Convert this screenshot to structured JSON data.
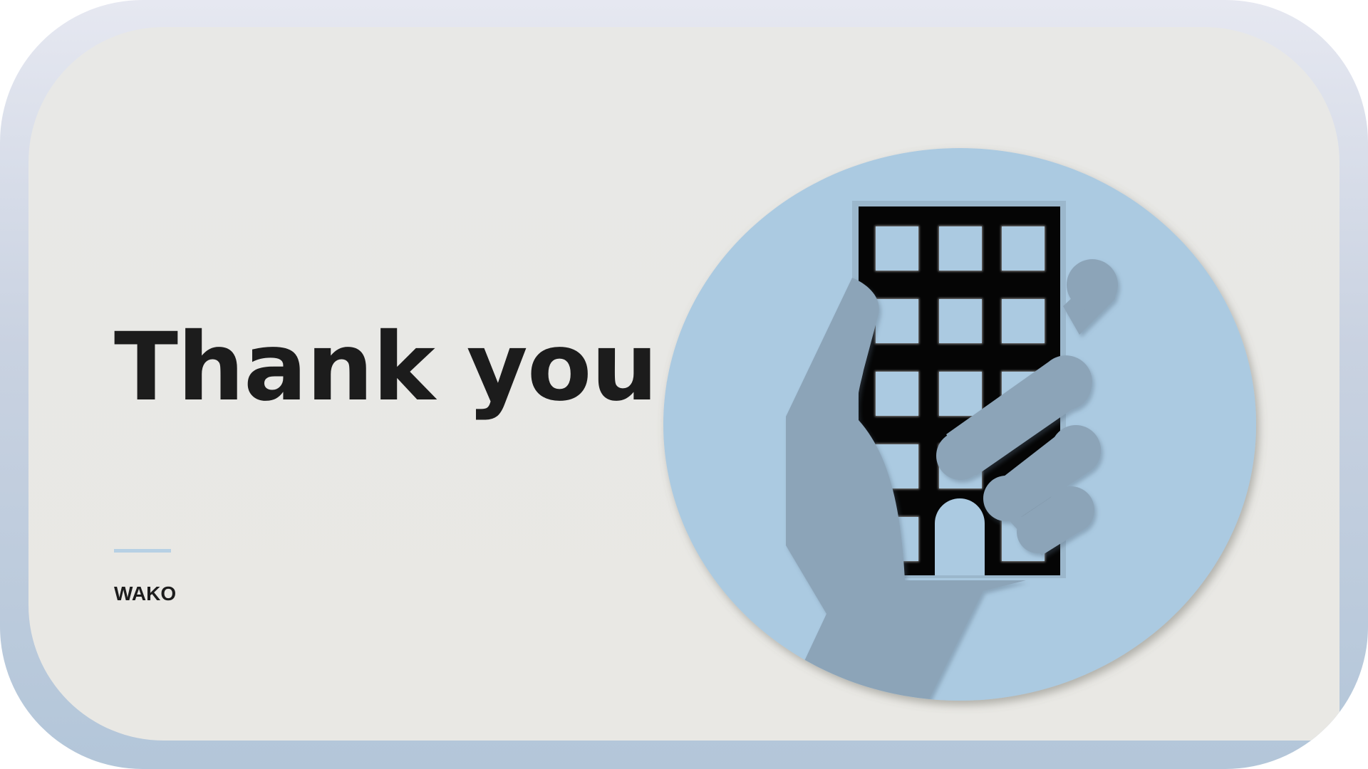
{
  "slide": {
    "title": "Thank you.",
    "brand": "WAKO"
  },
  "illustration": {
    "icon": "hand-holding-building-icon"
  },
  "colors": {
    "frame_top": "#e6e8f1",
    "frame_bottom": "#b3c6d9",
    "card_background": "#e8e8e6",
    "circle": "#abcae1",
    "hand": "#8ca4b8",
    "building": "#050505",
    "window": "#abcae1",
    "accent_rule": "#b7d0e4",
    "text": "#1c1c1c"
  }
}
